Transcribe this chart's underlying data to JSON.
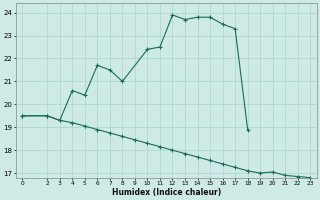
{
  "xlabel": "Humidex (Indice chaleur)",
  "background_color": "#ceeae7",
  "grid_color": "#aad4d0",
  "line_color": "#1a6b5a",
  "xlim": [
    -0.5,
    23.5
  ],
  "ylim": [
    16.8,
    24.4
  ],
  "yticks": [
    17,
    18,
    19,
    20,
    21,
    22,
    23,
    24
  ],
  "xticks": [
    0,
    2,
    3,
    4,
    5,
    6,
    7,
    8,
    9,
    10,
    11,
    12,
    13,
    14,
    15,
    16,
    17,
    18,
    19,
    20,
    21,
    22,
    23
  ],
  "line1_x": [
    0,
    2,
    3,
    4,
    5,
    6,
    7,
    8,
    10,
    11,
    12,
    13,
    14,
    15,
    16,
    17,
    18
  ],
  "line1_y": [
    19.5,
    19.5,
    19.3,
    20.6,
    20.4,
    21.7,
    21.5,
    21.0,
    22.4,
    22.5,
    23.9,
    23.7,
    23.8,
    23.8,
    23.5,
    23.3,
    18.9
  ],
  "line2_x": [
    0,
    2,
    3,
    4,
    5,
    6,
    7,
    8,
    9,
    10,
    11,
    12,
    13,
    14,
    15,
    16,
    17,
    18,
    19,
    20,
    21,
    22,
    23
  ],
  "line2_y": [
    19.5,
    19.5,
    19.3,
    19.2,
    19.05,
    18.9,
    18.75,
    18.6,
    18.45,
    18.3,
    18.15,
    18.0,
    17.85,
    17.7,
    17.55,
    17.4,
    17.25,
    17.1,
    17.0,
    17.05,
    16.9,
    16.85,
    16.8
  ]
}
